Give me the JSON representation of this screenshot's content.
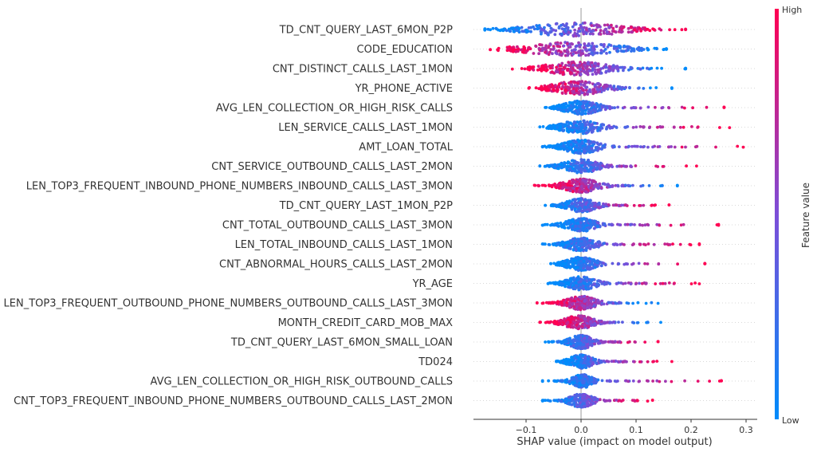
{
  "chart_data": {
    "type": "scatter",
    "subtype": "beeswarm",
    "xlabel": "SHAP value (impact on model output)",
    "xlim": [
      -0.2,
      0.31
    ],
    "xticks": [
      -0.1,
      0.0,
      0.1,
      0.2,
      0.3
    ],
    "xtick_labels": [
      "−0.1",
      "0.0",
      "0.1",
      "0.2",
      "0.3"
    ],
    "zero_line": 0,
    "colorbar": {
      "label": "Feature value",
      "high_label": "High",
      "low_label": "Low",
      "high_color": "#ff0052",
      "low_color": "#008bfb"
    },
    "features": [
      {
        "name": "TD_CNT_QUERY_LAST_6MON_P2P",
        "min": -0.175,
        "max": 0.19,
        "core": [
          -0.09,
          0.07
        ],
        "high_side": "right"
      },
      {
        "name": "CODE_EDUCATION",
        "min": -0.165,
        "max": 0.155,
        "core": [
          -0.1,
          0.06
        ],
        "high_side": "left"
      },
      {
        "name": "CNT_DISTINCT_CALLS_LAST_1MON",
        "min": -0.125,
        "max": 0.19,
        "core": [
          -0.06,
          0.05
        ],
        "high_side": "left"
      },
      {
        "name": "YR_PHONE_ACTIVE",
        "min": -0.095,
        "max": 0.165,
        "core": [
          -0.05,
          0.04
        ],
        "high_side": "left"
      },
      {
        "name": "AVG_LEN_COLLECTION_OR_HIGH_RISK_CALLS",
        "min": -0.065,
        "max": 0.26,
        "core": [
          -0.03,
          0.03
        ],
        "high_side": "right"
      },
      {
        "name": "LEN_SERVICE_CALLS_LAST_1MON",
        "min": -0.075,
        "max": 0.27,
        "core": [
          -0.035,
          0.03
        ],
        "high_side": "right"
      },
      {
        "name": "AMT_LOAN_TOTAL",
        "min": -0.07,
        "max": 0.295,
        "core": [
          -0.03,
          0.03
        ],
        "high_side": "right"
      },
      {
        "name": "CNT_SERVICE_OUTBOUND_CALLS_LAST_2MON",
        "min": -0.075,
        "max": 0.21,
        "core": [
          -0.03,
          0.03
        ],
        "high_side": "right"
      },
      {
        "name": "LEN_TOP3_FREQUENT_INBOUND_PHONE_NUMBERS_INBOUND_CALLS_LAST_3MON",
        "min": -0.085,
        "max": 0.175,
        "core": [
          -0.03,
          0.03
        ],
        "high_side": "left"
      },
      {
        "name": "TD_CNT_QUERY_LAST_1MON_P2P",
        "min": -0.065,
        "max": 0.16,
        "core": [
          -0.025,
          0.025
        ],
        "high_side": "right"
      },
      {
        "name": "CNT_TOTAL_OUTBOUND_CALLS_LAST_3MON",
        "min": -0.07,
        "max": 0.25,
        "core": [
          -0.025,
          0.025
        ],
        "high_side": "right"
      },
      {
        "name": "LEN_TOTAL_INBOUND_CALLS_LAST_1MON",
        "min": -0.07,
        "max": 0.215,
        "core": [
          -0.025,
          0.025
        ],
        "high_side": "right"
      },
      {
        "name": "CNT_ABNORMAL_HOURS_CALLS_LAST_2MON",
        "min": -0.055,
        "max": 0.225,
        "core": [
          -0.025,
          0.025
        ],
        "high_side": "right"
      },
      {
        "name": "YR_AGE",
        "min": -0.06,
        "max": 0.215,
        "core": [
          -0.025,
          0.025
        ],
        "high_side": "right"
      },
      {
        "name": "LEN_TOP3_FREQUENT_OUTBOUND_PHONE_NUMBERS_OUTBOUND_CALLS_LAST_3MON",
        "min": -0.08,
        "max": 0.14,
        "core": [
          -0.025,
          0.025
        ],
        "high_side": "left"
      },
      {
        "name": "MONTH_CREDIT_CARD_MOB_MAX",
        "min": -0.075,
        "max": 0.145,
        "core": [
          -0.03,
          0.02
        ],
        "high_side": "left"
      },
      {
        "name": "TD_CNT_QUERY_LAST_6MON_SMALL_LOAN",
        "min": -0.065,
        "max": 0.14,
        "core": [
          -0.02,
          0.02
        ],
        "high_side": "right"
      },
      {
        "name": "TD024",
        "min": -0.045,
        "max": 0.165,
        "core": [
          -0.02,
          0.02
        ],
        "high_side": "right"
      },
      {
        "name": "AVG_LEN_COLLECTION_OR_HIGH_RISK_OUTBOUND_CALLS",
        "min": -0.07,
        "max": 0.255,
        "core": [
          -0.015,
          0.02
        ],
        "high_side": "right"
      },
      {
        "name": "CNT_TOP3_FREQUENT_INBOUND_PHONE_NUMBERS_OUTBOUND_CALLS_LAST_2MON",
        "min": -0.07,
        "max": 0.13,
        "core": [
          -0.02,
          0.02
        ],
        "high_side": "right"
      }
    ]
  }
}
